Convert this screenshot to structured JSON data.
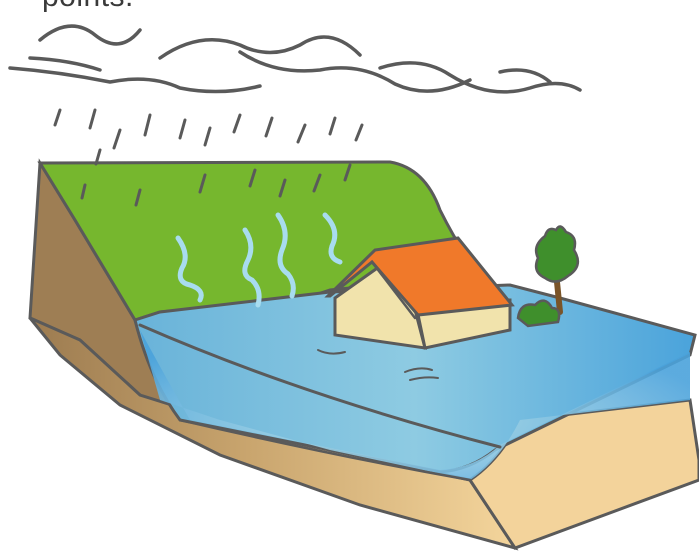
{
  "caption": "points.",
  "colors": {
    "grass": "#76b72e",
    "soil_dark": "#a48357",
    "soil_light": "#f2d29a",
    "water_blue": "#4fa8dc",
    "water_light": "#b9e0e8",
    "roof": "#f0792a",
    "wall": "#f1e3ac",
    "tree": "#3f8f2c",
    "trunk": "#7a5428",
    "steam": "#a8dcef",
    "outline": "#5a5a5a"
  },
  "icons": [
    "storm-cloud-icon",
    "rain-icon",
    "house-icon",
    "tree-icon",
    "bush-icon",
    "steam-icon"
  ]
}
